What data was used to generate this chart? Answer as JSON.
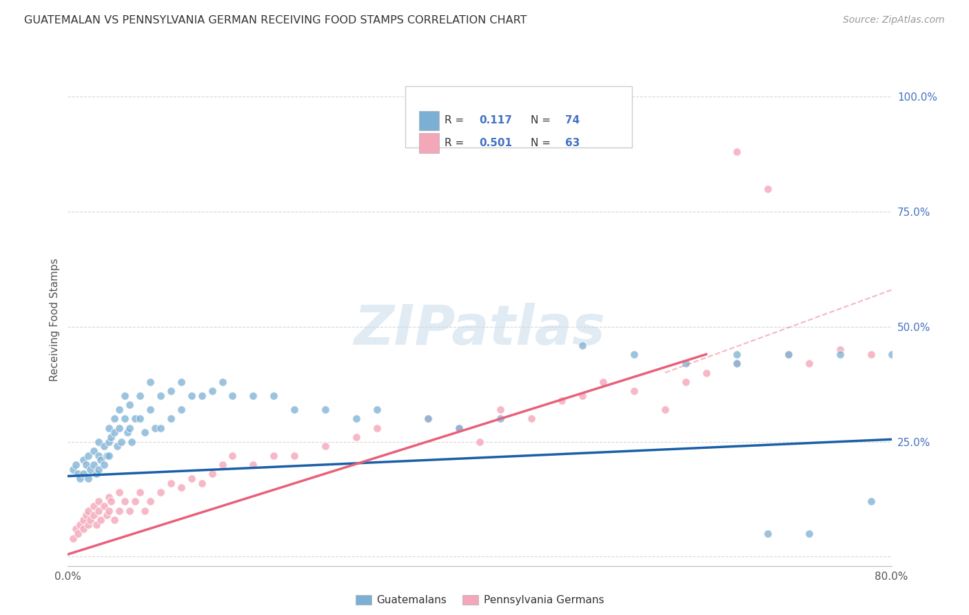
{
  "title": "GUATEMALAN VS PENNSYLVANIA GERMAN RECEIVING FOOD STAMPS CORRELATION CHART",
  "source": "Source: ZipAtlas.com",
  "ylabel": "Receiving Food Stamps",
  "xlim": [
    0.0,
    0.8
  ],
  "ylim": [
    -0.02,
    1.05
  ],
  "plot_ylim": [
    0.0,
    1.0
  ],
  "xticks": [
    0.0,
    0.2,
    0.4,
    0.6,
    0.8
  ],
  "xticklabels": [
    "0.0%",
    "",
    "",
    "",
    "80.0%"
  ],
  "yticks_right": [
    0.0,
    0.25,
    0.5,
    0.75,
    1.0
  ],
  "yticklabels_right": [
    "",
    "25.0%",
    "50.0%",
    "75.0%",
    "100.0%"
  ],
  "grid_color": "#d8d8d8",
  "background_color": "#ffffff",
  "watermark": "ZIPatlas",
  "blue_color": "#7bafd4",
  "pink_color": "#f4a7b9",
  "blue_line_color": "#1a5fa8",
  "pink_line_color": "#e8607a",
  "legend_label1": "Guatemalans",
  "legend_label2": "Pennsylvania Germans",
  "guatemalan_x": [
    0.005,
    0.008,
    0.01,
    0.012,
    0.015,
    0.015,
    0.018,
    0.02,
    0.02,
    0.022,
    0.025,
    0.025,
    0.028,
    0.03,
    0.03,
    0.03,
    0.032,
    0.035,
    0.035,
    0.038,
    0.04,
    0.04,
    0.04,
    0.042,
    0.045,
    0.045,
    0.048,
    0.05,
    0.05,
    0.052,
    0.055,
    0.055,
    0.058,
    0.06,
    0.06,
    0.062,
    0.065,
    0.07,
    0.07,
    0.075,
    0.08,
    0.08,
    0.085,
    0.09,
    0.09,
    0.1,
    0.1,
    0.11,
    0.11,
    0.12,
    0.13,
    0.14,
    0.15,
    0.16,
    0.18,
    0.2,
    0.22,
    0.25,
    0.28,
    0.3,
    0.35,
    0.38,
    0.42,
    0.5,
    0.55,
    0.6,
    0.65,
    0.68,
    0.72,
    0.75,
    0.78,
    0.8,
    0.65,
    0.7
  ],
  "guatemalan_y": [
    0.19,
    0.2,
    0.18,
    0.17,
    0.21,
    0.18,
    0.2,
    0.22,
    0.17,
    0.19,
    0.23,
    0.2,
    0.18,
    0.25,
    0.22,
    0.19,
    0.21,
    0.24,
    0.2,
    0.22,
    0.28,
    0.25,
    0.22,
    0.26,
    0.3,
    0.27,
    0.24,
    0.32,
    0.28,
    0.25,
    0.35,
    0.3,
    0.27,
    0.33,
    0.28,
    0.25,
    0.3,
    0.35,
    0.3,
    0.27,
    0.38,
    0.32,
    0.28,
    0.35,
    0.28,
    0.36,
    0.3,
    0.38,
    0.32,
    0.35,
    0.35,
    0.36,
    0.38,
    0.35,
    0.35,
    0.35,
    0.32,
    0.32,
    0.3,
    0.32,
    0.3,
    0.28,
    0.3,
    0.46,
    0.44,
    0.42,
    0.44,
    0.05,
    0.05,
    0.44,
    0.12,
    0.44,
    0.42,
    0.44
  ],
  "pennger_x": [
    0.005,
    0.008,
    0.01,
    0.012,
    0.015,
    0.015,
    0.018,
    0.02,
    0.02,
    0.022,
    0.025,
    0.025,
    0.028,
    0.03,
    0.03,
    0.032,
    0.035,
    0.038,
    0.04,
    0.04,
    0.042,
    0.045,
    0.05,
    0.05,
    0.055,
    0.06,
    0.065,
    0.07,
    0.075,
    0.08,
    0.09,
    0.1,
    0.11,
    0.12,
    0.13,
    0.14,
    0.15,
    0.16,
    0.18,
    0.2,
    0.22,
    0.25,
    0.28,
    0.3,
    0.35,
    0.38,
    0.4,
    0.42,
    0.45,
    0.48,
    0.5,
    0.52,
    0.55,
    0.58,
    0.6,
    0.62,
    0.65,
    0.65,
    0.68,
    0.7,
    0.72,
    0.75,
    0.78
  ],
  "pennger_y": [
    0.04,
    0.06,
    0.05,
    0.07,
    0.08,
    0.06,
    0.09,
    0.1,
    0.07,
    0.08,
    0.11,
    0.09,
    0.07,
    0.12,
    0.1,
    0.08,
    0.11,
    0.09,
    0.13,
    0.1,
    0.12,
    0.08,
    0.14,
    0.1,
    0.12,
    0.1,
    0.12,
    0.14,
    0.1,
    0.12,
    0.14,
    0.16,
    0.15,
    0.17,
    0.16,
    0.18,
    0.2,
    0.22,
    0.2,
    0.22,
    0.22,
    0.24,
    0.26,
    0.28,
    0.3,
    0.28,
    0.25,
    0.32,
    0.3,
    0.34,
    0.35,
    0.38,
    0.36,
    0.32,
    0.38,
    0.4,
    0.42,
    0.88,
    0.8,
    0.44,
    0.42,
    0.45,
    0.44
  ],
  "blue_trendline": [
    0.0,
    0.8,
    0.175,
    0.255
  ],
  "pink_trendline": [
    0.0,
    0.62,
    0.005,
    0.44
  ],
  "pink_dash": [
    0.58,
    0.8,
    0.4,
    0.58
  ]
}
